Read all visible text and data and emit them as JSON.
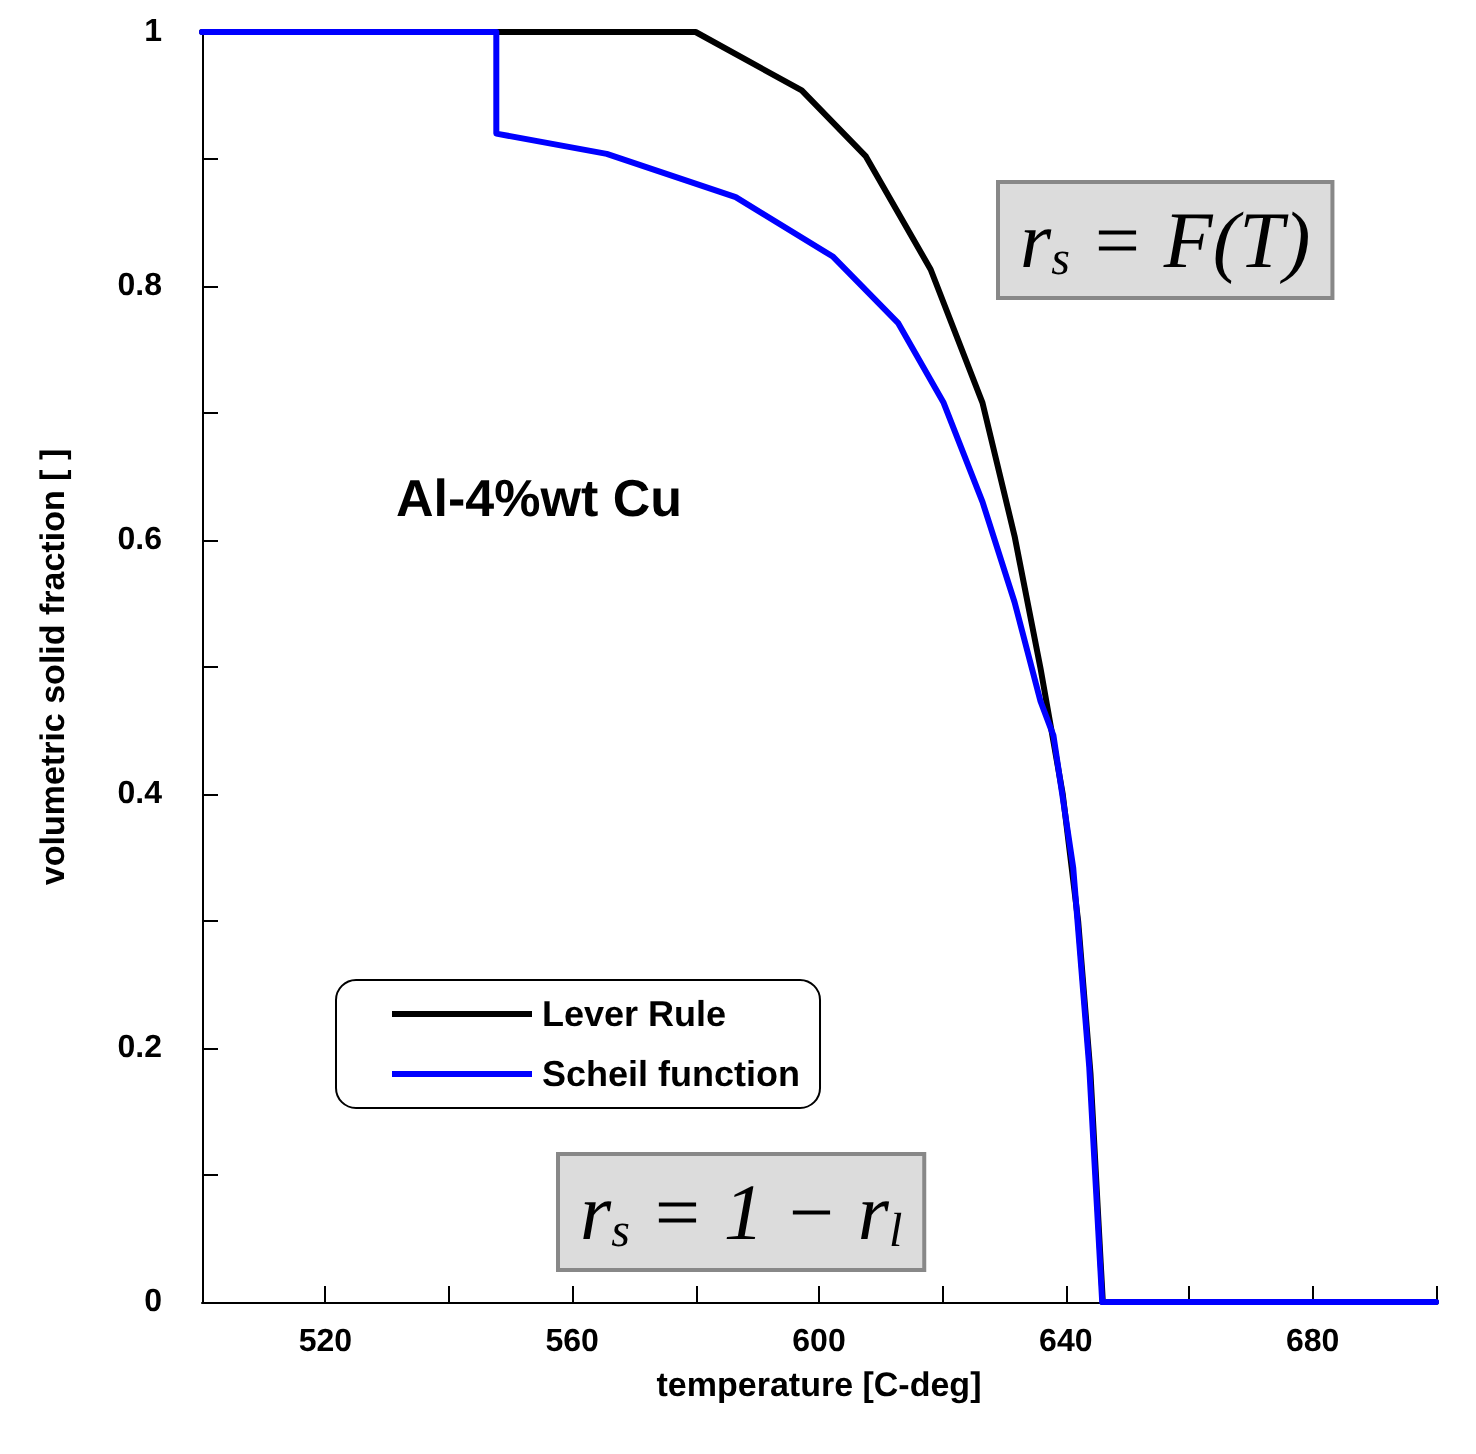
{
  "chart_data": {
    "type": "line",
    "xlabel": "temperature [C-deg]",
    "ylabel": "volumetric solid fraction [ ]",
    "xlim": [
      500,
      700
    ],
    "xticks": [
      {
        "value": 500,
        "label": null
      },
      520,
      {
        "value": 540,
        "label": null
      },
      560,
      {
        "value": 580,
        "label": null
      },
      600,
      {
        "value": 620,
        "label": null
      },
      640,
      {
        "value": 660,
        "label": null
      },
      680,
      {
        "value": 700,
        "label": null
      }
    ],
    "ylim": [
      0,
      1
    ],
    "yticks": [
      0,
      {
        "value": 0.1,
        "label": null
      },
      0.2,
      {
        "value": 0.3,
        "label": null
      },
      0.4,
      {
        "value": 0.5,
        "label": null
      },
      0.6,
      {
        "value": 0.7,
        "label": null
      },
      0.8,
      {
        "value": 0.9,
        "label": null
      },
      1
    ],
    "grid": false,
    "legend": "bottom left",
    "marker": "none",
    "line_style": "solid",
    "annotations": [
      "Al-4%wt Cu",
      "r$_{s}$ = F(T)",
      "r$_{s}$ = 1 − r$_{l}$"
    ],
    "series": [
      {
        "name": "Lever Rule",
        "color": "#000000",
        "x": [
          500,
          580,
          597.2,
          607.6,
          618.1,
          626.5,
          631.7,
          635.9,
          639.5,
          642,
          644,
          646,
          700
        ],
        "values": [
          1,
          1,
          0.954,
          0.902,
          0.813,
          0.708,
          0.603,
          0.499,
          0.4,
          0.3,
          0.18,
          0,
          0
        ]
      },
      {
        "name": "Scheil function",
        "color": "#0000ff",
        "x": [
          500,
          547.7,
          547.7,
          565.6,
          586.5,
          602.3,
          612.8,
          620.2,
          626.5,
          631.7,
          635.9,
          638,
          641.2,
          643.8,
          645.9,
          700
        ],
        "values": [
          1,
          1,
          0.92,
          0.904,
          0.87,
          0.823,
          0.771,
          0.708,
          0.63,
          0.551,
          0.473,
          0.446,
          0.342,
          0.185,
          0,
          0
        ]
      }
    ]
  }
}
